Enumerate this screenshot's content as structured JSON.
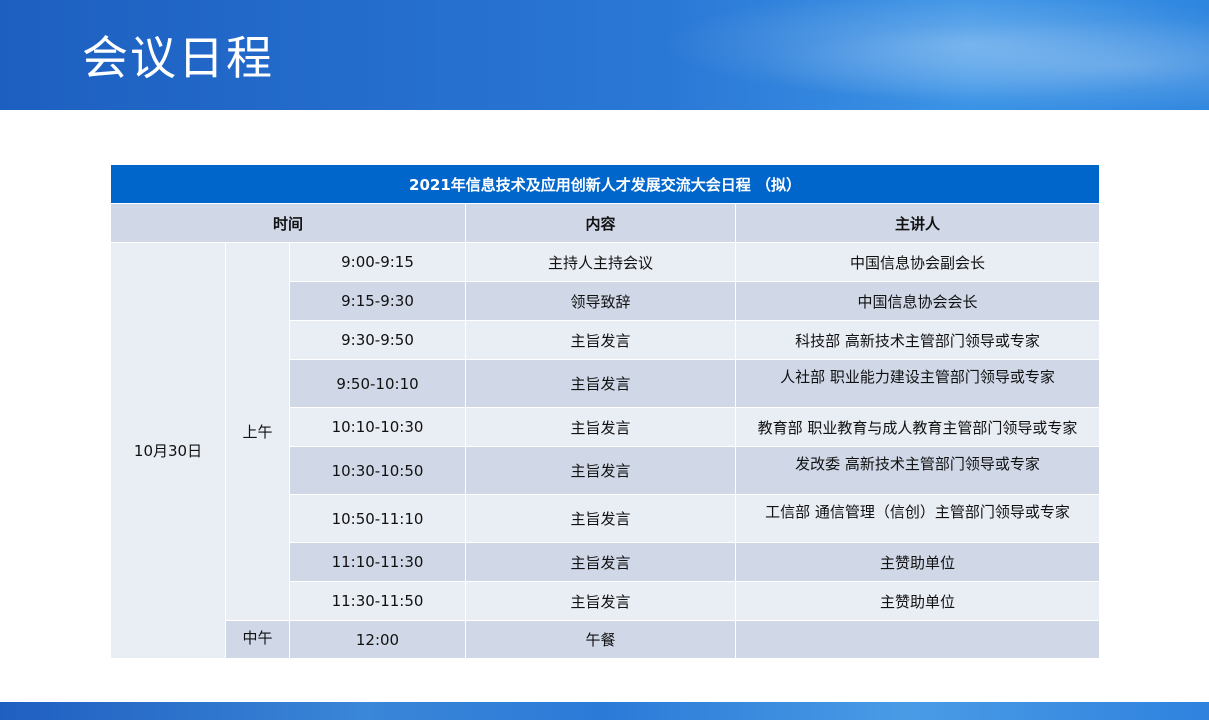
{
  "slide": {
    "title": "会议日程"
  },
  "table": {
    "caption": "2021年信息技术及应用创新人才发展交流大会日程 （拟）",
    "headers": {
      "time": "时间",
      "content": "内容",
      "speaker": "主讲人"
    },
    "date": "10月30日",
    "morning": "上午",
    "noon": "中午",
    "rows": [
      {
        "time": "9:00-9:15",
        "content": "主持人主持会议",
        "speaker": "中国信息协会副会长"
      },
      {
        "time": "9:15-9:30",
        "content": "领导致辞",
        "speaker": "中国信息协会会长"
      },
      {
        "time": "9:30-9:50",
        "content": "主旨发言",
        "speaker": "科技部  高新技术主管部门领导或专家"
      },
      {
        "time": "9:50-10:10",
        "content": "主旨发言",
        "speaker": "人社部 职业能力建设主管部门领导或专家"
      },
      {
        "time": "10:10-10:30",
        "content": "主旨发言",
        "speaker": "教育部 职业教育与成人教育主管部门领导或专家"
      },
      {
        "time": "10:30-10:50",
        "content": "主旨发言",
        "speaker": "发改委 高新技术主管部门领导或专家"
      },
      {
        "time": "10:50-11:10",
        "content": "主旨发言",
        "speaker": "工信部 通信管理（信创）主管部门领导或专家"
      },
      {
        "time": "11:10-11:30",
        "content": "主旨发言",
        "speaker": "主赞助单位"
      },
      {
        "time": "11:30-11:50",
        "content": "主旨发言",
        "speaker": "主赞助单位"
      },
      {
        "time": "12:00",
        "content": "午餐",
        "speaker": ""
      }
    ]
  },
  "colors": {
    "accent": "#0066cc",
    "row_dark": "#d0d8e8",
    "row_light": "#e9edf4"
  }
}
